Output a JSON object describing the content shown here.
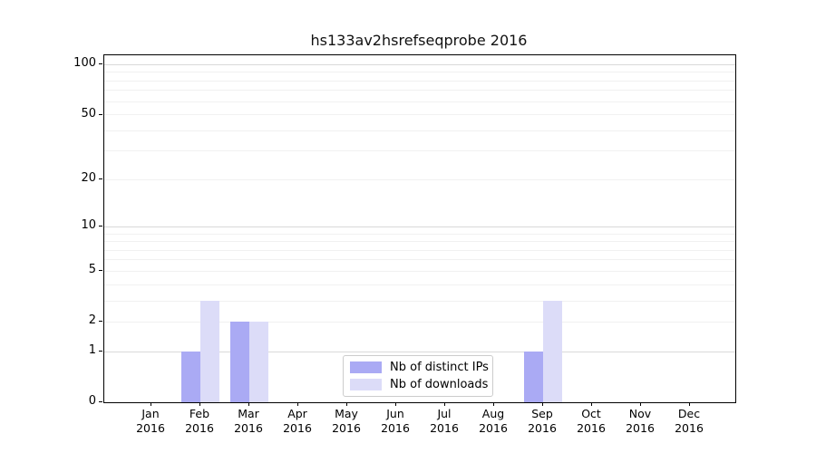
{
  "title": "hs133av2hsrefseqprobe 2016",
  "chart_data": {
    "type": "bar",
    "title": "hs133av2hsrefseqprobe 2016",
    "categories": [
      "Jan",
      "Feb",
      "Mar",
      "Apr",
      "May",
      "Jun",
      "Jul",
      "Aug",
      "Sep",
      "Oct",
      "Nov",
      "Dec"
    ],
    "tick_year": "2016",
    "series": [
      {
        "name": "Nb of distinct IPs",
        "color": "#aaaaf4",
        "values": [
          0,
          1,
          2,
          0,
          0,
          0,
          0,
          0,
          1,
          0,
          0,
          0
        ]
      },
      {
        "name": "Nb of downloads",
        "color": "#dcdcf8",
        "values": [
          0,
          3,
          2,
          0,
          0,
          0,
          0,
          0,
          3,
          0,
          0,
          0
        ]
      }
    ],
    "yscale": "log1p",
    "yticks": [
      0,
      1,
      2,
      5,
      10,
      20,
      50,
      100
    ],
    "ylim": [
      0,
      114
    ],
    "xlabel": "",
    "ylabel": "",
    "grid": "horizontal",
    "legend_position": "lower center inside plot"
  },
  "colors": {
    "background": "#ffffff",
    "axis": "#000000",
    "grid_major": "#d9d9d9",
    "grid_minor": "#f1f1f1",
    "legend_border": "#cccccc",
    "text": "#000000"
  }
}
